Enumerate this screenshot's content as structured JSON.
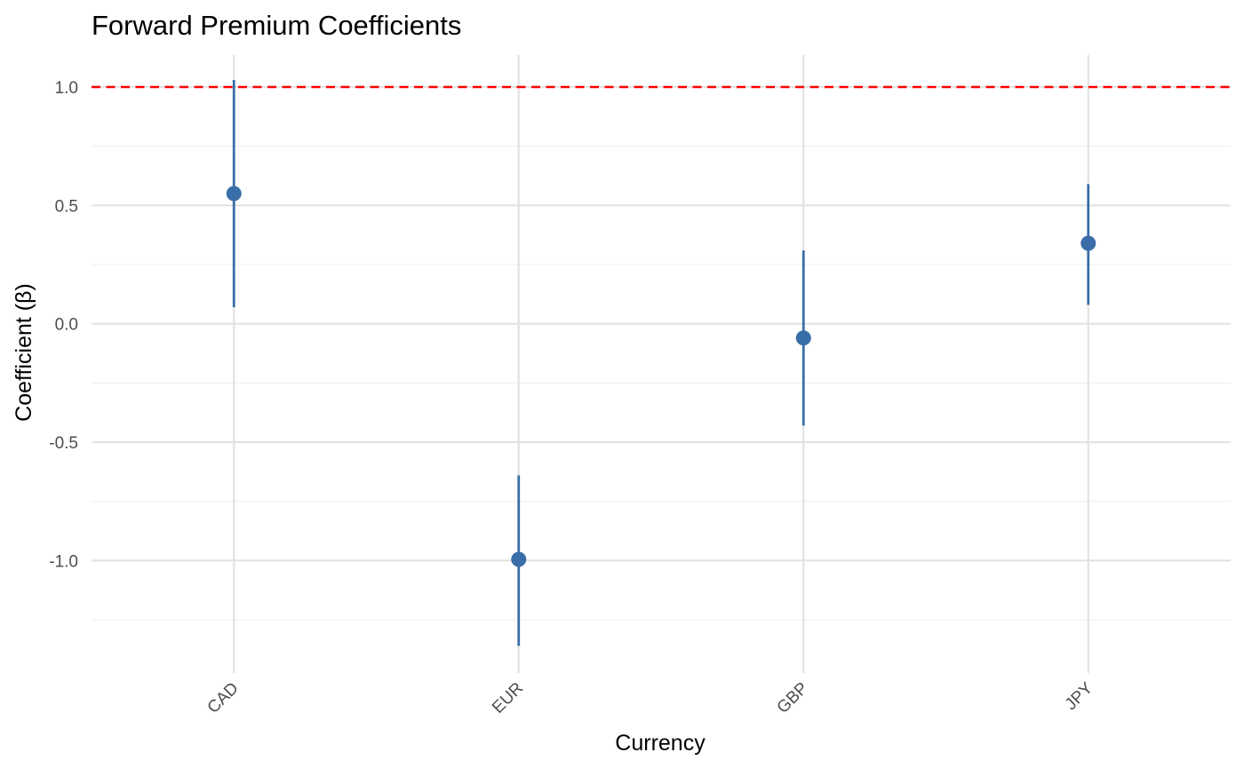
{
  "chart_data": {
    "type": "scatter",
    "title": "Forward Premium Coefficients",
    "xlabel": "Currency",
    "ylabel": "Coefficient (β)",
    "categories": [
      "CAD",
      "EUR",
      "GBP",
      "JPY"
    ],
    "series": [
      {
        "values": [
          0.55,
          -0.995,
          -0.06,
          0.34
        ],
        "lower": [
          0.07,
          -1.36,
          -0.43,
          0.08
        ],
        "upper": [
          1.03,
          -0.64,
          0.31,
          0.59
        ]
      }
    ],
    "reference_line": {
      "y": 1.0,
      "style": "dashed",
      "color": "#FF0000"
    },
    "ylim": [
      -1.475,
      1.135
    ],
    "yticks": [
      -1.0,
      -0.5,
      0.0,
      0.5,
      1.0
    ],
    "ytick_labels": [
      "-1.0",
      "-0.5",
      "0.0",
      "0.5",
      "1.0"
    ],
    "grid": true,
    "legend": "none",
    "colors": {
      "point": "#3A6EA8",
      "grid_major": "#E3E3E3",
      "grid_minor": "#EFEFEF"
    }
  }
}
